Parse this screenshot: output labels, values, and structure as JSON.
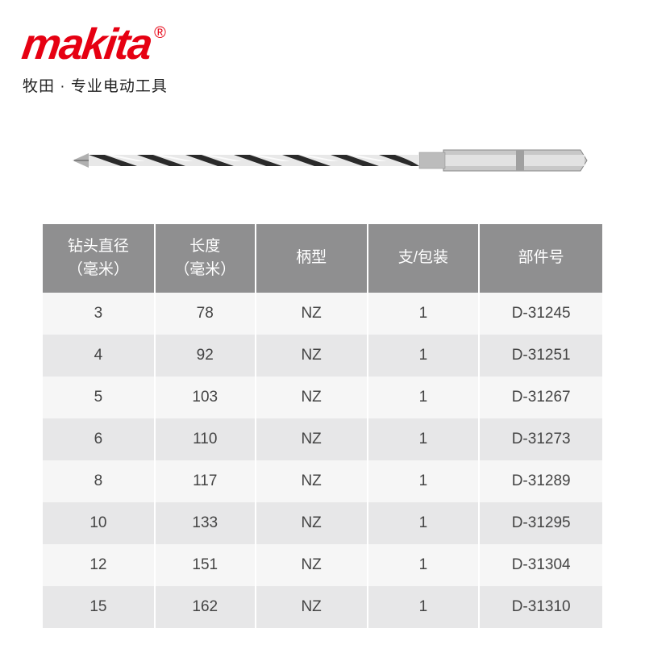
{
  "brand": {
    "logo_text": "makita",
    "reg_mark": "®",
    "tagline": "牧田 · 专业电动工具",
    "logo_color": "#e60012"
  },
  "drill_image": {
    "description": "hex-shank twist drill bit",
    "shaft_color": "#d0d0d0",
    "flute_dark": "#303030",
    "flute_light": "#f0f0f0"
  },
  "table": {
    "header_bg": "#8f8f90",
    "header_fg": "#ffffff",
    "row_odd_bg": "#f6f6f6",
    "row_even_bg": "#e7e7e8",
    "text_color": "#444444",
    "font_size": 19,
    "columns": [
      "钻头直径\n（毫米）",
      "长度\n（毫米）",
      "柄型",
      "支/包装",
      "部件号"
    ],
    "rows": [
      [
        "3",
        "78",
        "NZ",
        "1",
        "D-31245"
      ],
      [
        "4",
        "92",
        "NZ",
        "1",
        "D-31251"
      ],
      [
        "5",
        "103",
        "NZ",
        "1",
        "D-31267"
      ],
      [
        "6",
        "110",
        "NZ",
        "1",
        "D-31273"
      ],
      [
        "8",
        "117",
        "NZ",
        "1",
        "D-31289"
      ],
      [
        "10",
        "133",
        "NZ",
        "1",
        "D-31295"
      ],
      [
        "12",
        "151",
        "NZ",
        "1",
        "D-31304"
      ],
      [
        "15",
        "162",
        "NZ",
        "1",
        "D-31310"
      ]
    ]
  }
}
